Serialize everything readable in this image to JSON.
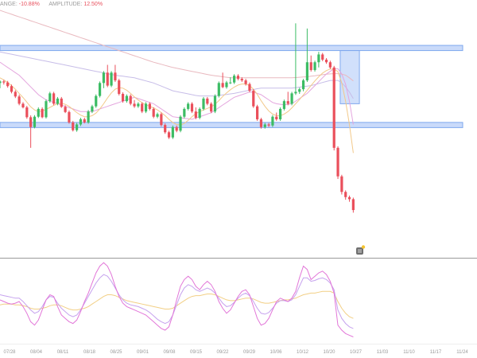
{
  "header": {
    "change_label": "ANGE:",
    "change_value": "-10.88%",
    "amplitude_label": "AMPLITUDE:",
    "amplitude_value": "12.50%"
  },
  "colors": {
    "up": "#3cbc64",
    "down": "#ea4f5b",
    "zone": "#7fa8ee",
    "zone_fill": "#c9dafa",
    "ma_long": "#e9b9bf",
    "ma_mid": "#c7bde8",
    "ma_short": "#e4a6de",
    "ma_fast": "#f2c98a",
    "osc_k": "#e276d8",
    "osc_d": "#c6a2ee",
    "osc_j": "#f2cf85"
  },
  "chart_data": {
    "type": "candlestick",
    "price_y_range": [
      0,
      100
    ],
    "x_axis": {
      "ticks": [
        "07/28",
        "08/04",
        "08/11",
        "08/18",
        "08/25",
        "09/01",
        "09/08",
        "09/15",
        "09/22",
        "09/29",
        "10/06",
        "10/12",
        "10/20",
        "10/27",
        "11/03",
        "11/10",
        "11/17",
        "11/24"
      ],
      "categories_count": 93
    },
    "candles": [
      [
        68,
        69,
        66,
        68.6
      ],
      [
        68.6,
        69.2,
        67.4,
        68.2
      ],
      [
        68.2,
        68.8,
        66.2,
        66.8
      ],
      [
        66.8,
        67.4,
        64.0,
        64.6
      ],
      [
        64.6,
        65.2,
        62.2,
        62.8
      ],
      [
        62.8,
        63.5,
        59.4,
        60.0
      ],
      [
        60.0,
        60.6,
        58.2,
        58.6
      ],
      [
        58.6,
        59.2,
        54.2,
        54.8
      ],
      [
        54.8,
        55.5,
        43.0,
        51.0
      ],
      [
        51.0,
        55.6,
        50.5,
        55.0
      ],
      [
        55.0,
        58.6,
        54.5,
        58.0
      ],
      [
        58.0,
        58.6,
        54.4,
        54.8
      ],
      [
        54.8,
        61.6,
        54.3,
        61.0
      ],
      [
        61.0,
        64.6,
        60.4,
        64.0
      ],
      [
        64.0,
        64.6,
        59.4,
        60.0
      ],
      [
        60.0,
        62.6,
        59.4,
        62.0
      ],
      [
        62.0,
        62.6,
        58.4,
        58.8
      ],
      [
        58.8,
        59.4,
        56.4,
        56.8
      ],
      [
        56.8,
        57.4,
        52.3,
        52.8
      ],
      [
        52.8,
        53.4,
        49.3,
        49.8
      ],
      [
        49.8,
        52.6,
        49.2,
        52.0
      ],
      [
        52.0,
        54.6,
        51.4,
        54.0
      ],
      [
        54.0,
        54.6,
        52.4,
        52.8
      ],
      [
        52.8,
        57.6,
        52.3,
        57.0
      ],
      [
        57.0,
        59.6,
        56.4,
        59.0
      ],
      [
        59.0,
        63.6,
        58.4,
        63.0
      ],
      [
        63.0,
        68.6,
        62.4,
        68.0
      ],
      [
        68.0,
        72.6,
        66.0,
        72.0
      ],
      [
        72.0,
        75.0,
        66.4,
        67.0
      ],
      [
        67.0,
        72.6,
        66.4,
        72.0
      ],
      [
        72.0,
        75.0,
        68.4,
        69.0
      ],
      [
        69.0,
        69.6,
        63.2,
        63.8
      ],
      [
        63.8,
        64.4,
        60.4,
        61.0
      ],
      [
        61.0,
        63.6,
        60.4,
        63.0
      ],
      [
        63.0,
        63.6,
        59.4,
        60.0
      ],
      [
        60.0,
        61.4,
        58.4,
        59.0
      ],
      [
        59.0,
        60.6,
        58.4,
        60.0
      ],
      [
        60.0,
        60.6,
        56.4,
        57.0
      ],
      [
        57.0,
        60.6,
        56.4,
        60.0
      ],
      [
        60.0,
        60.6,
        57.4,
        58.0
      ],
      [
        58.0,
        58.6,
        54.4,
        55.0
      ],
      [
        55.0,
        56.6,
        54.4,
        56.0
      ],
      [
        56.0,
        56.6,
        51.2,
        51.8
      ],
      [
        51.8,
        52.4,
        48.4,
        49.0
      ],
      [
        49.0,
        49.6,
        46.4,
        47.0
      ],
      [
        47.0,
        51.6,
        46.4,
        51.0
      ],
      [
        51.0,
        51.6,
        49.0,
        49.6
      ],
      [
        49.6,
        55.6,
        49.0,
        55.0
      ],
      [
        55.0,
        58.6,
        54.4,
        58.0
      ],
      [
        58.0,
        60.6,
        57.4,
        60.0
      ],
      [
        60.0,
        60.6,
        56.4,
        57.0
      ],
      [
        57.0,
        58.6,
        54.0,
        54.6
      ],
      [
        54.6,
        58.6,
        54.0,
        58.0
      ],
      [
        58.0,
        62.6,
        57.4,
        62.0
      ],
      [
        62.0,
        62.6,
        59.4,
        60.0
      ],
      [
        60.0,
        60.6,
        56.4,
        57.0
      ],
      [
        57.0,
        63.6,
        56.4,
        63.0
      ],
      [
        63.0,
        68.6,
        62.4,
        68.0
      ],
      [
        68.0,
        72.0,
        66.0,
        66.4
      ],
      [
        66.4,
        68.8,
        65.8,
        68.2
      ],
      [
        68.2,
        70.2,
        67.6,
        68.2
      ],
      [
        68.2,
        71.4,
        67.6,
        70.8
      ],
      [
        70.8,
        71.4,
        69.0,
        69.6
      ],
      [
        69.6,
        70.2,
        68.4,
        69.0
      ],
      [
        69.0,
        69.6,
        67.0,
        67.6
      ],
      [
        67.6,
        68.2,
        64.4,
        65.0
      ],
      [
        65.0,
        65.6,
        58.4,
        59.0
      ],
      [
        59.0,
        59.6,
        53.4,
        54.0
      ],
      [
        54.0,
        54.6,
        50.4,
        51.0
      ],
      [
        51.0,
        52.6,
        50.4,
        52.0
      ],
      [
        52.0,
        52.6,
        51.0,
        51.6
      ],
      [
        51.6,
        55.6,
        51.0,
        55.0
      ],
      [
        55.0,
        56.6,
        53.4,
        54.0
      ],
      [
        54.0,
        58.6,
        53.4,
        58.0
      ],
      [
        58.0,
        61.6,
        57.4,
        61.0
      ],
      [
        61.0,
        64.6,
        59.4,
        60.0
      ],
      [
        60.0,
        64.6,
        59.4,
        64.0
      ],
      [
        64.0,
        91.0,
        63.4,
        64.6
      ],
      [
        64.6,
        66.2,
        63.8,
        65.6
      ],
      [
        65.6,
        69.6,
        64.8,
        69.0
      ],
      [
        69.0,
        89.0,
        68.4,
        76.0
      ],
      [
        76.0,
        78.6,
        72.4,
        73.0
      ],
      [
        73.0,
        76.6,
        72.4,
        76.0
      ],
      [
        76.0,
        80.0,
        74.0,
        79.0
      ],
      [
        79.0,
        79.6,
        76.4,
        77.0
      ],
      [
        77.0,
        77.6,
        75.4,
        76.0
      ],
      [
        76.0,
        76.6,
        73.4,
        74.0
      ],
      [
        74.0,
        74.6,
        42.0,
        43.0
      ],
      [
        43.0,
        43.6,
        31.0,
        32.0
      ],
      [
        32.0,
        32.6,
        25.0,
        26.0
      ],
      [
        26.0,
        26.6,
        23.0,
        24.0
      ],
      [
        24.0,
        24.6,
        22.2,
        23.2
      ],
      [
        23.2,
        23.8,
        18.0,
        19.0
      ]
    ],
    "moving_averages": [
      {
        "color_key": "ma_long",
        "values": [
          96.0,
          95.5,
          95.0,
          94.5,
          94.0,
          93.5,
          93.0,
          92.5,
          92.0,
          91.5,
          91.0,
          90.5,
          90.0,
          89.5,
          89.0,
          88.5,
          88.0,
          87.5,
          87.0,
          86.5,
          86.0,
          85.5,
          85.0,
          84.5,
          84.0,
          83.5,
          83.0,
          82.5,
          82.0,
          81.5,
          81.0,
          80.5,
          80.0,
          79.5,
          79.0,
          78.5,
          78.0,
          77.5,
          77.0,
          76.5,
          76.0,
          75.6,
          75.2,
          74.8,
          74.4,
          74.0,
          73.7,
          73.4,
          73.1,
          72.8,
          72.5,
          72.2,
          71.9,
          71.6,
          71.3,
          71.0,
          70.8,
          70.6,
          70.4,
          70.2,
          70.0,
          70.0,
          70.0,
          70.0,
          70.0,
          70.0,
          70.0,
          70.0,
          70.0,
          70.0,
          70.0,
          70.0,
          70.0,
          70.0,
          70.0,
          70.0,
          70.0,
          70.1,
          70.2,
          70.3,
          70.4,
          70.6,
          70.8,
          71.0,
          71.2,
          71.4,
          71.5,
          71.6,
          71.6,
          71.4,
          71.0,
          70.0,
          68.8
        ]
      },
      {
        "color_key": "ma_mid",
        "values": [
          80.0,
          79.7,
          79.4,
          79.1,
          78.8,
          78.5,
          78.2,
          77.9,
          77.6,
          77.3,
          77.0,
          76.7,
          76.4,
          76.1,
          75.8,
          75.5,
          75.2,
          74.9,
          74.6,
          74.3,
          74.0,
          73.7,
          73.4,
          73.1,
          72.8,
          72.5,
          72.2,
          71.9,
          71.6,
          71.3,
          71.0,
          70.8,
          70.6,
          70.4,
          70.2,
          70.0,
          69.6,
          69.2,
          68.8,
          68.4,
          68.0,
          67.4,
          66.8,
          66.2,
          65.6,
          65.0,
          64.7,
          64.4,
          64.1,
          63.8,
          63.5,
          63.2,
          63.0,
          63.0,
          63.0,
          63.0,
          63.0,
          63.2,
          63.4,
          63.6,
          63.8,
          64.0,
          64.3,
          64.6,
          64.9,
          65.2,
          65.5,
          65.8,
          66.0,
          66.0,
          66.0,
          66.0,
          66.0,
          66.0,
          66.0,
          66.0,
          66.0,
          66.2,
          66.4,
          66.6,
          66.8,
          67.0,
          67.4,
          67.8,
          68.2,
          68.6,
          69.0,
          69.0,
          69.0,
          68.0,
          66.5,
          64.5,
          62.0
        ]
      },
      {
        "color_key": "ma_short",
        "values": [
          76.0,
          75.0,
          74.0,
          73.0,
          72.0,
          71.0,
          69.5,
          68.0,
          66.5,
          65.0,
          63.5,
          62.5,
          61.5,
          61.0,
          60.5,
          60.0,
          59.5,
          59.0,
          58.5,
          58.0,
          57.5,
          57.0,
          57.0,
          57.0,
          57.0,
          57.5,
          58.0,
          58.5,
          59.0,
          59.5,
          60.0,
          60.5,
          61.0,
          61.5,
          62.0,
          62.5,
          62.0,
          61.5,
          61.0,
          60.5,
          60.0,
          59.0,
          58.0,
          57.0,
          56.0,
          55.0,
          54.8,
          54.6,
          54.4,
          54.2,
          54.0,
          54.5,
          55.0,
          55.5,
          56.0,
          56.5,
          57.5,
          58.5,
          59.5,
          60.5,
          61.5,
          62.5,
          63.0,
          63.5,
          64.0,
          64.5,
          64.5,
          64.0,
          63.5,
          62.5,
          61.5,
          60.5,
          60.0,
          59.8,
          59.6,
          59.8,
          60.0,
          61.0,
          62.0,
          63.0,
          64.0,
          65.5,
          67.0,
          68.5,
          70.0,
          71.5,
          72.5,
          73.5,
          73.5,
          71.5,
          67.5,
          61.0,
          52.0
        ]
      },
      {
        "color_key": "ma_fast",
        "values": [
          70.0,
          69.2,
          68.2,
          67.0,
          65.6,
          64.0,
          62.4,
          60.6,
          58.8,
          57.6,
          57.0,
          57.2,
          57.8,
          58.6,
          59.4,
          60.0,
          60.2,
          59.8,
          59.0,
          57.8,
          56.6,
          55.6,
          55.0,
          55.0,
          55.4,
          56.4,
          58.0,
          60.0,
          62.2,
          64.2,
          65.6,
          66.2,
          66.0,
          65.2,
          64.0,
          62.6,
          61.4,
          60.4,
          59.6,
          59.0,
          58.4,
          57.6,
          56.6,
          55.4,
          54.0,
          52.8,
          52.0,
          51.8,
          52.4,
          53.6,
          55.0,
          56.2,
          57.0,
          57.6,
          58.2,
          58.8,
          59.8,
          61.2,
          62.8,
          64.2,
          65.4,
          66.4,
          67.2,
          67.6,
          67.6,
          67.0,
          65.6,
          63.6,
          61.2,
          59.0,
          57.2,
          56.0,
          55.4,
          55.4,
          56.0,
          57.0,
          58.4,
          60.0,
          61.6,
          63.4,
          65.2,
          67.0,
          68.8,
          70.4,
          71.8,
          72.8,
          73.4,
          73.4,
          72.4,
          68.0,
          61.0,
          52.0,
          41.0
        ]
      }
    ],
    "zones": [
      {
        "label": "resistance",
        "from": 80.5,
        "to": 82.5
      },
      {
        "label": "support",
        "from": 50.8,
        "to": 52.8
      }
    ],
    "highlight_box": {
      "x_from": 88.6,
      "x_to": 93.6,
      "y_from": 60.0,
      "y_to": 80.5
    },
    "last_price_label": "",
    "oscillator": {
      "y_range": [
        0,
        100
      ],
      "k": [
        52,
        50,
        48,
        47,
        48,
        50,
        44,
        36,
        26,
        22,
        28,
        40,
        52,
        58,
        56,
        44,
        34,
        30,
        26,
        24,
        28,
        38,
        50,
        60,
        72,
        84,
        92,
        96,
        92,
        82,
        68,
        56,
        48,
        44,
        42,
        40,
        38,
        36,
        34,
        30,
        26,
        22,
        18,
        16,
        20,
        34,
        52,
        68,
        76,
        80,
        76,
        68,
        64,
        70,
        74,
        70,
        62,
        50,
        42,
        36,
        40,
        48,
        56,
        62,
        64,
        58,
        44,
        30,
        22,
        24,
        30,
        40,
        50,
        54,
        52,
        50,
        54,
        62,
        78,
        92,
        88,
        76,
        80,
        84,
        86,
        82,
        74,
        60,
        22,
        16,
        12,
        10,
        8
      ],
      "d": [
        58,
        57,
        56,
        55,
        54,
        54,
        50,
        45,
        40,
        36,
        38,
        44,
        52,
        56,
        55,
        48,
        42,
        38,
        34,
        32,
        34,
        40,
        48,
        56,
        64,
        72,
        78,
        82,
        80,
        74,
        66,
        58,
        52,
        48,
        46,
        45,
        44,
        42,
        40,
        37,
        33,
        29,
        26,
        24,
        26,
        34,
        46,
        58,
        66,
        70,
        68,
        64,
        62,
        64,
        66,
        64,
        60,
        54,
        48,
        44,
        45,
        49,
        54,
        58,
        60,
        57,
        50,
        42,
        36,
        35,
        37,
        42,
        48,
        51,
        51,
        50,
        52,
        58,
        68,
        78,
        78,
        74,
        75,
        77,
        78,
        76,
        72,
        64,
        40,
        30,
        24,
        20,
        18
      ],
      "j": [
        46,
        47,
        47,
        47,
        46,
        46,
        45,
        44,
        42,
        41,
        41,
        42,
        43,
        45,
        46,
        46,
        45,
        43,
        41,
        40,
        40,
        41,
        42,
        44,
        47,
        50,
        53,
        56,
        58,
        58,
        57,
        55,
        53,
        51,
        50,
        49,
        48,
        47,
        46,
        45,
        44,
        43,
        42,
        41,
        41,
        42,
        45,
        48,
        51,
        54,
        56,
        57,
        57,
        58,
        59,
        59,
        58,
        56,
        54,
        52,
        51,
        51,
        52,
        53,
        54,
        54,
        53,
        51,
        49,
        48,
        48,
        49,
        50,
        51,
        52,
        52,
        53,
        54,
        56,
        58,
        59,
        60,
        60,
        61,
        62,
        62,
        62,
        60,
        50,
        42,
        36,
        32,
        30
      ]
    }
  }
}
